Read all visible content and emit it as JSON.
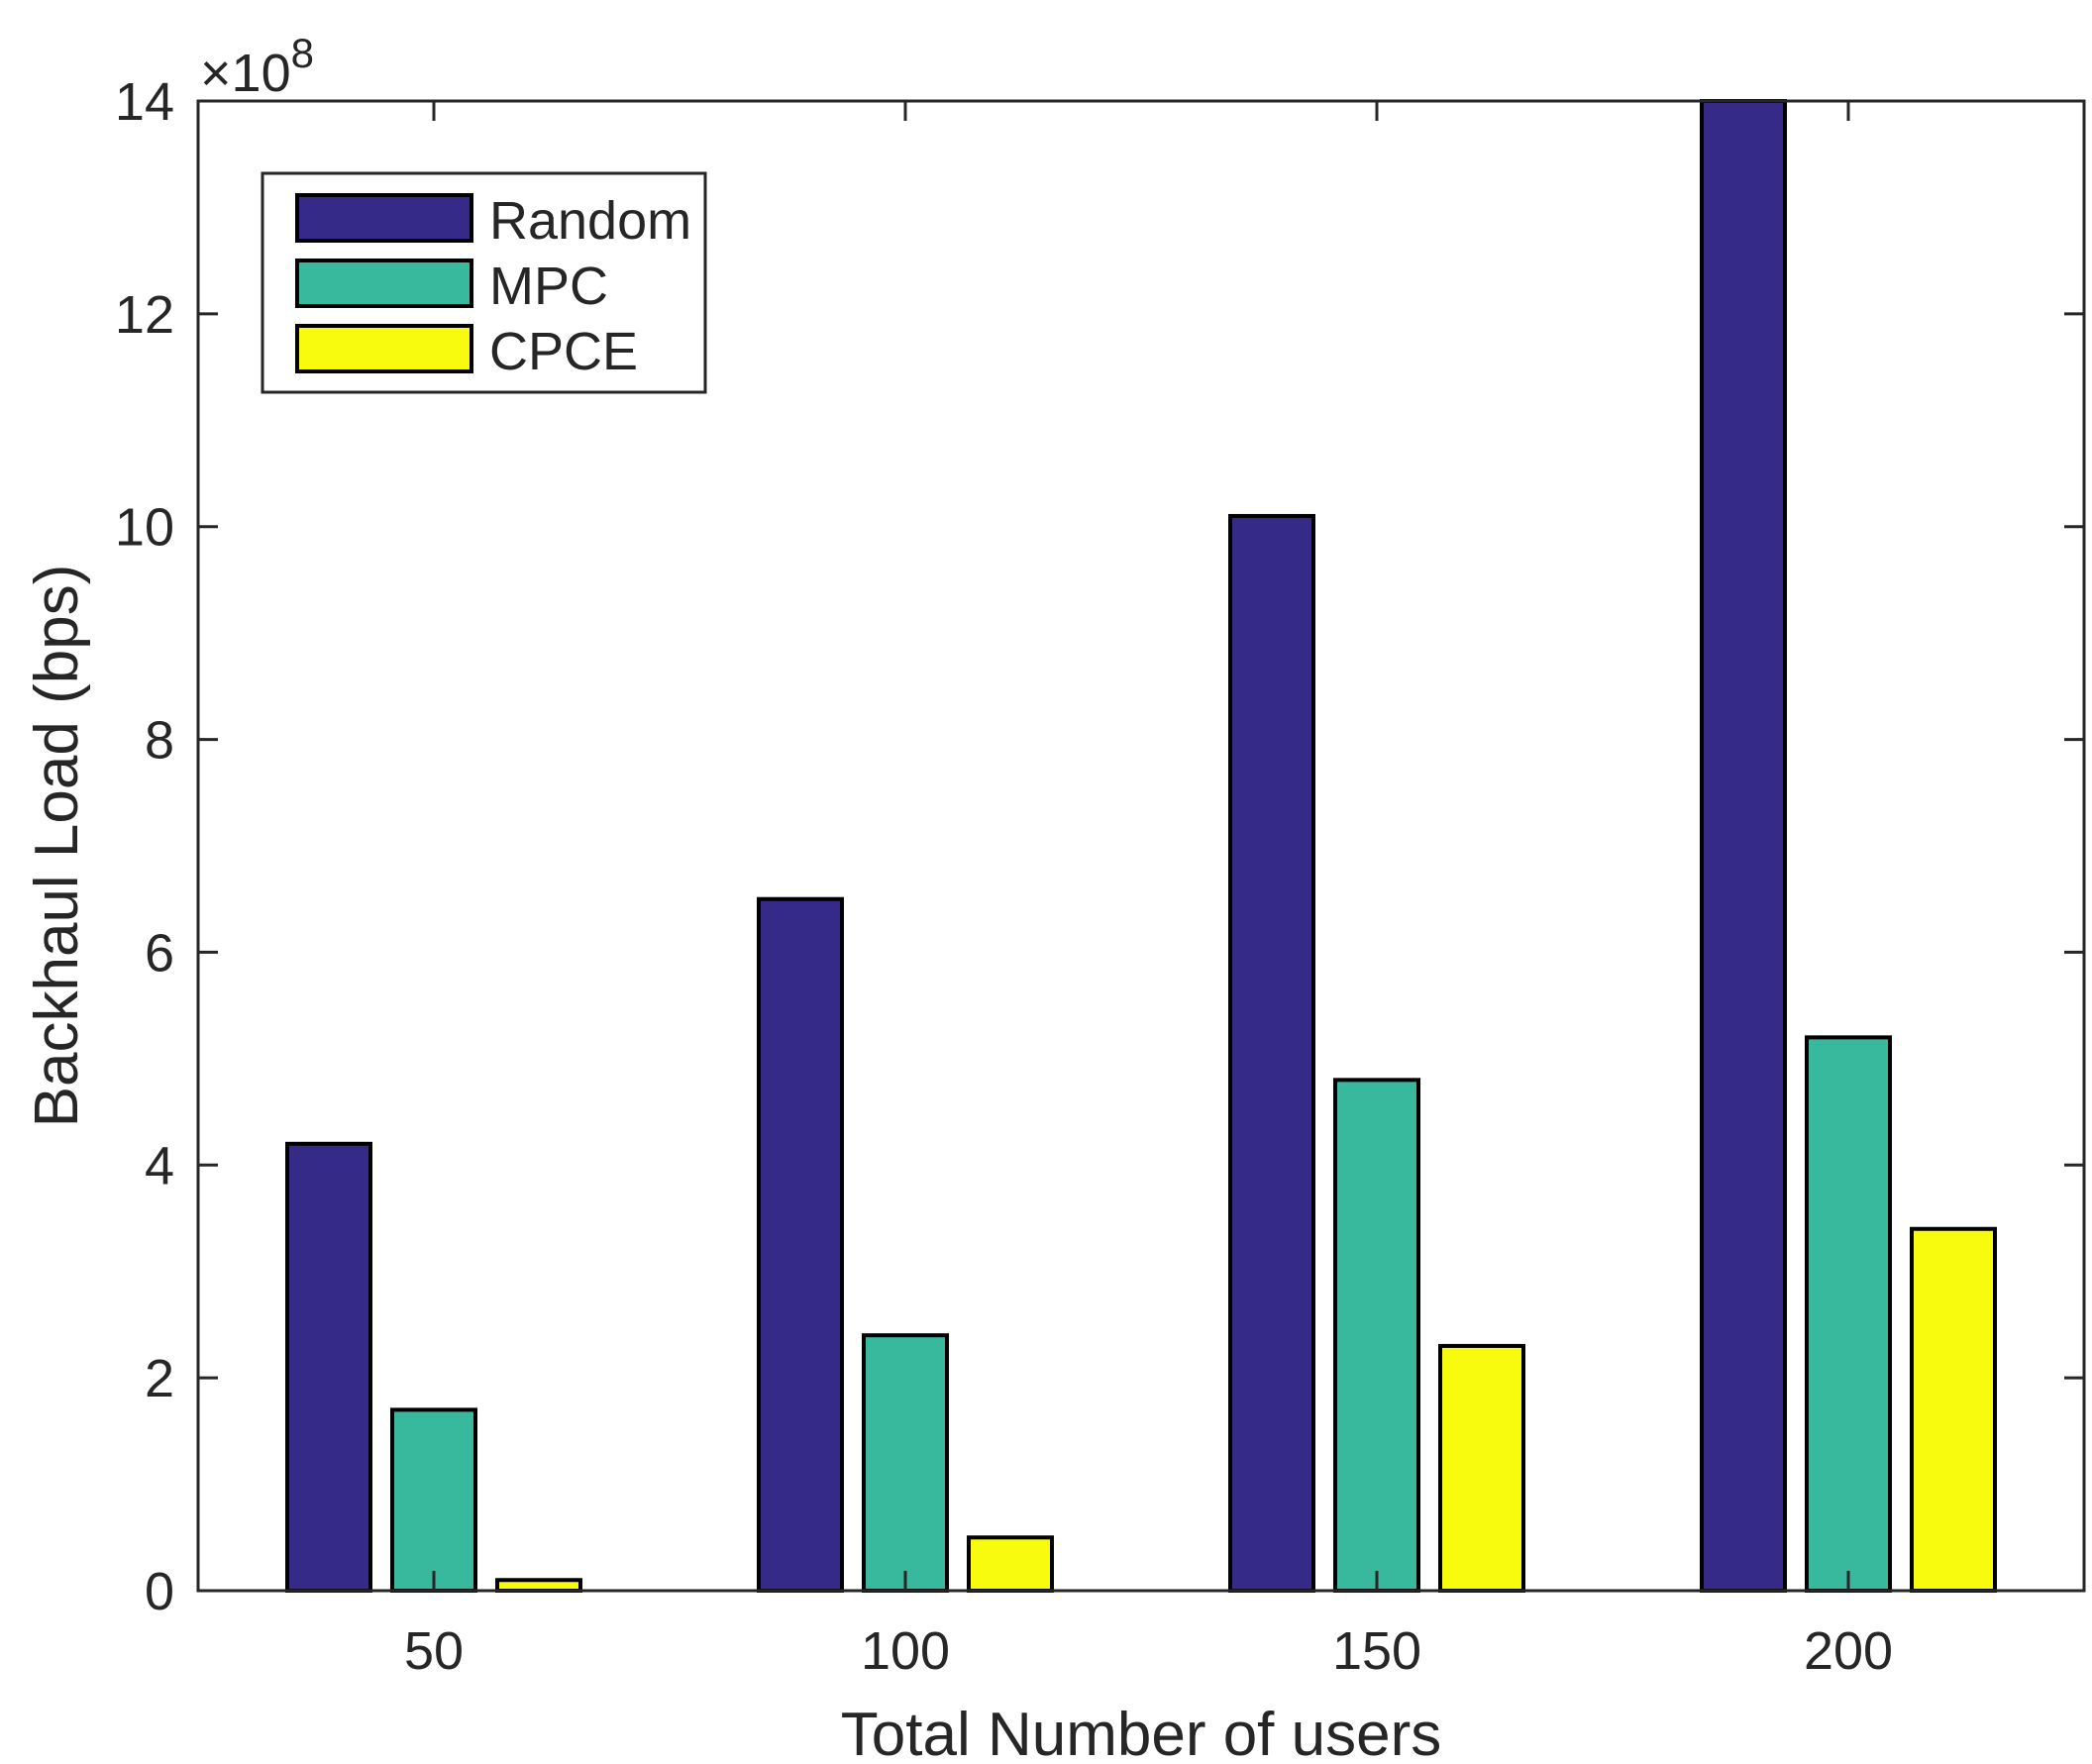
{
  "chart_data": {
    "type": "bar",
    "title": "",
    "xlabel": "Total Number of users",
    "ylabel": "Backhaul Load (bps)",
    "exponent_label": {
      "prefix": "×10",
      "power": "8"
    },
    "categories": [
      "50",
      "100",
      "150",
      "200"
    ],
    "ylim": [
      0,
      14
    ],
    "yticks": [
      "0",
      "2",
      "4",
      "6",
      "8",
      "10",
      "12",
      "14"
    ],
    "legend_position": "top-left",
    "series": [
      {
        "name": "Random",
        "color": "#352A87",
        "values": [
          4.2,
          6.5,
          10.1,
          14.0
        ]
      },
      {
        "name": "MPC",
        "color": "#38B99E",
        "values": [
          1.7,
          2.4,
          4.8,
          5.2
        ]
      },
      {
        "name": "CPCE",
        "color": "#F9FB0E",
        "values": [
          0.1,
          0.5,
          2.3,
          3.4
        ]
      }
    ]
  }
}
